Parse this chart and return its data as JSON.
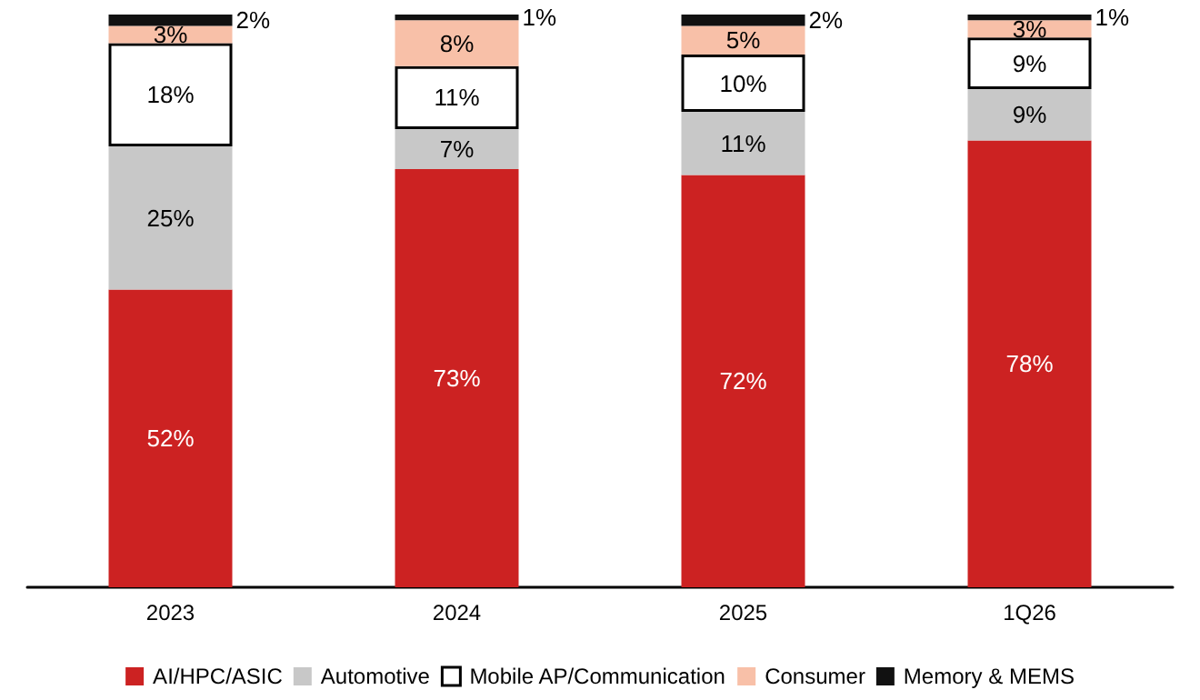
{
  "chart_data": {
    "type": "bar",
    "stacked": true,
    "legend": "bottom",
    "categories": [
      "2023",
      "2024",
      "2025",
      "1Q26"
    ],
    "series": [
      {
        "name": "AI/HPC/ASIC",
        "color": "#cc2222",
        "values": [
          52,
          73,
          72,
          78
        ],
        "value_labels": [
          "52%",
          "73%",
          "72%",
          "78%"
        ]
      },
      {
        "name": "Automotive",
        "color": "#c8c8c8",
        "values": [
          25,
          7,
          11,
          9
        ],
        "value_labels": [
          "25%",
          "7%",
          "11%",
          "9%"
        ]
      },
      {
        "name": "Mobile AP/Communication",
        "color": "#ffffff",
        "values": [
          18,
          11,
          10,
          9
        ],
        "value_labels": [
          "18%",
          "11%",
          "10%",
          "9%"
        ]
      },
      {
        "name": "Consumer",
        "color": "#f8c0a8",
        "values": [
          3,
          8,
          5,
          3
        ],
        "value_labels": [
          "3%",
          "8%",
          "5%",
          "3%"
        ]
      },
      {
        "name": "Memory & MEMS",
        "color": "#111111",
        "values": [
          2,
          1,
          2,
          1
        ],
        "value_labels": [
          "2%",
          "1%",
          "2%",
          "1%"
        ]
      }
    ]
  }
}
